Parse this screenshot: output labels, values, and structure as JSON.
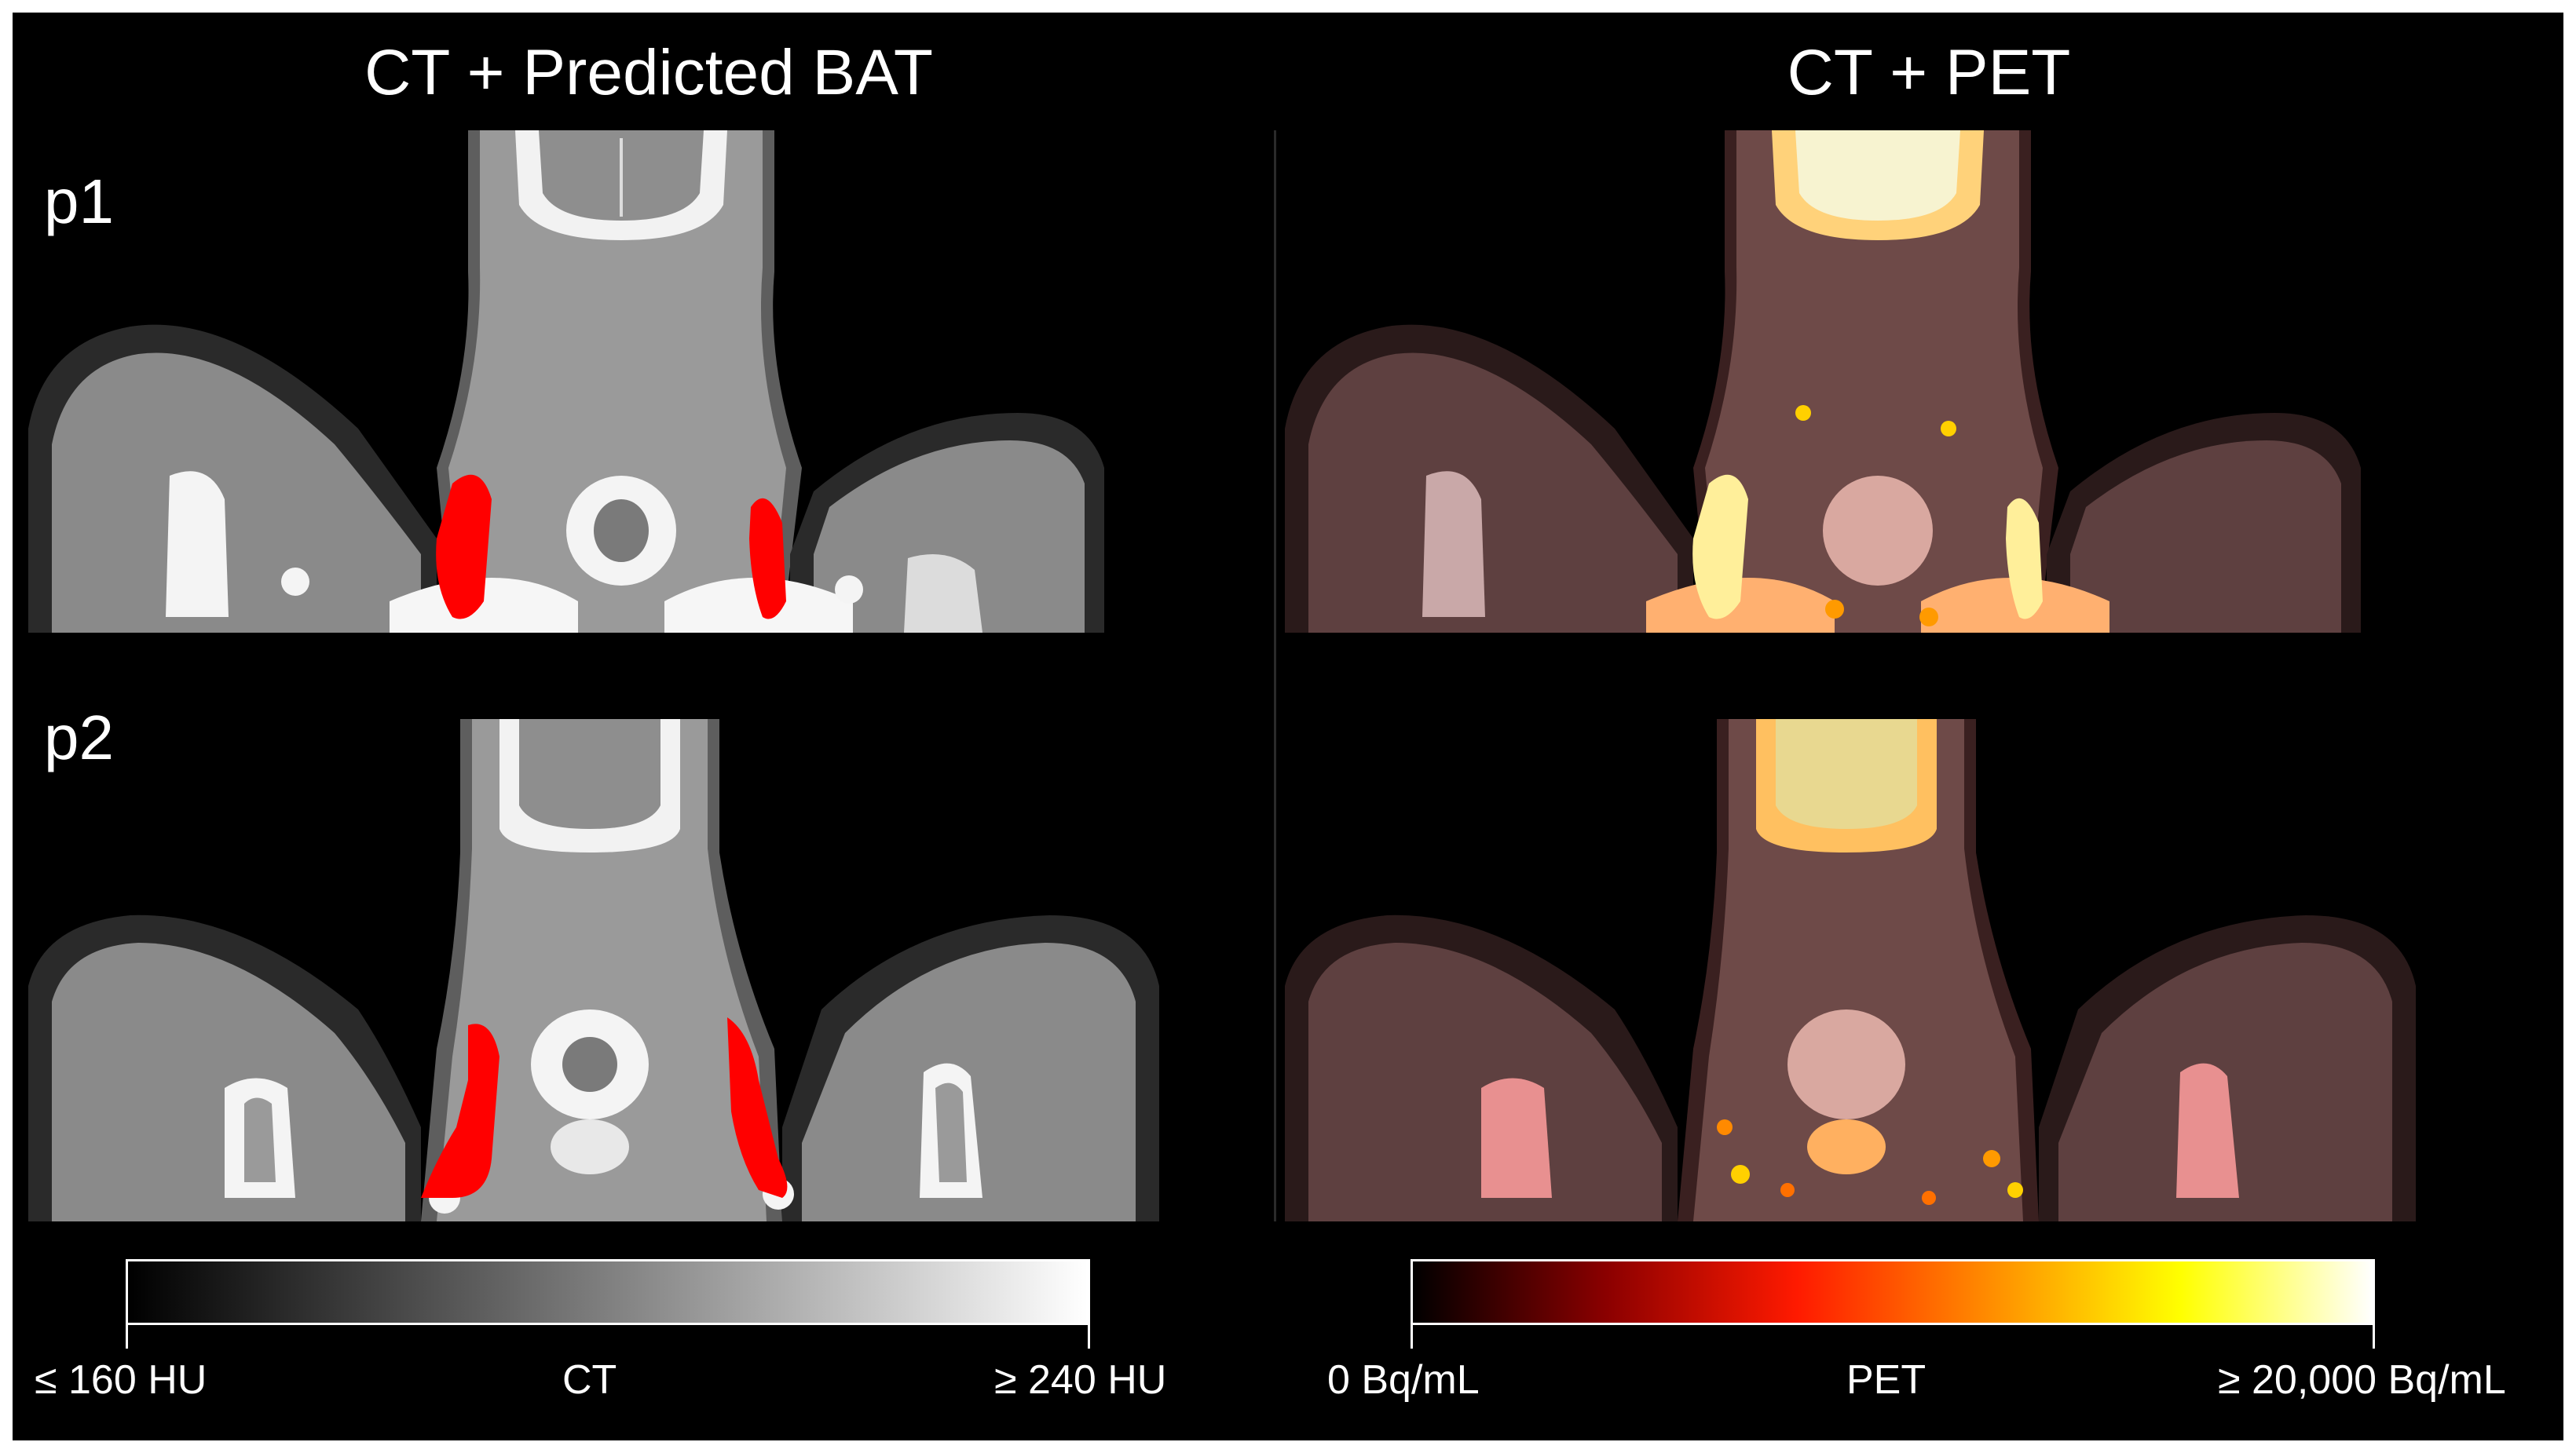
{
  "figure": {
    "columns": [
      {
        "title": "CT + Predicted BAT"
      },
      {
        "title": "CT + PET"
      }
    ],
    "rows": [
      {
        "label": "p1"
      },
      {
        "label": "p2"
      }
    ],
    "colorbars": {
      "ct": {
        "name": "CT",
        "min_label": "≤ 160 HU",
        "max_label": "≥ 240 HU",
        "colormap": "grayscale",
        "colors": [
          "#000000",
          "#ffffff"
        ]
      },
      "pet": {
        "name": "PET",
        "min_label": "0 Bq/mL",
        "max_label": "≥ 20,000 Bq/mL",
        "colormap": "hot",
        "colors": [
          "#000000",
          "#8a0000",
          "#ff1a00",
          "#ff8c00",
          "#ffff00",
          "#ffffff"
        ]
      }
    },
    "overlay_colors": {
      "bat": "#ff0000"
    }
  }
}
